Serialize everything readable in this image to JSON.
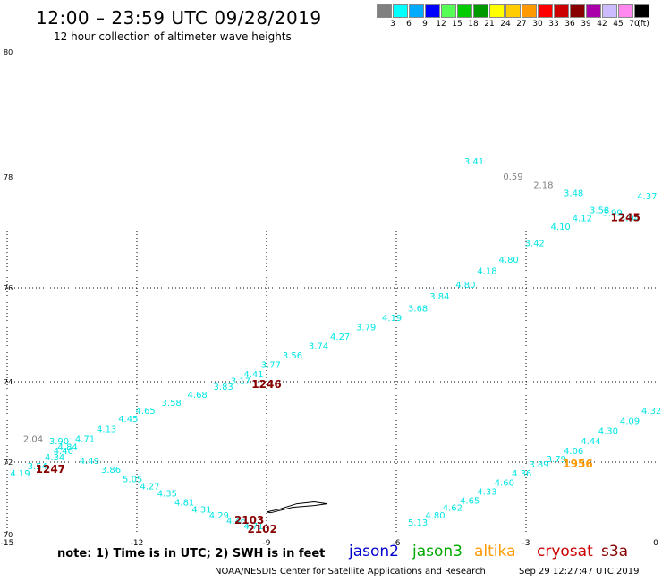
{
  "header": {
    "title": "12:00 – 23:59 UTC 09/28/2019",
    "subtitle": "12 hour collection of altimeter wave heights"
  },
  "legend": {
    "unit": "(ft)",
    "cells": [
      {
        "color": "#808080",
        "label": "3"
      },
      {
        "color": "#00ffff",
        "label": "6"
      },
      {
        "color": "#00aaff",
        "label": "9"
      },
      {
        "color": "#0000ff",
        "label": "12"
      },
      {
        "color": "#55ff55",
        "label": "15"
      },
      {
        "color": "#00cc00",
        "label": "18"
      },
      {
        "color": "#009900",
        "label": "21"
      },
      {
        "color": "#ffff00",
        "label": "24"
      },
      {
        "color": "#ffcc00",
        "label": "27"
      },
      {
        "color": "#ff9900",
        "label": "30"
      },
      {
        "color": "#ff0000",
        "label": "33"
      },
      {
        "color": "#cc0000",
        "label": "36"
      },
      {
        "color": "#880000",
        "label": "39"
      },
      {
        "color": "#aa00aa",
        "label": "42"
      },
      {
        "color": "#ccbbff",
        "label": "45"
      },
      {
        "color": "#ff88ee",
        "label": "70"
      },
      {
        "color": "#000000",
        "label": ""
      }
    ]
  },
  "chart_data": {
    "type": "scatter",
    "xlim": [
      -15,
      0
    ],
    "ylim": [
      70,
      80
    ],
    "grid": true,
    "x_ticks": [
      {
        "value": -15,
        "label": "-15"
      },
      {
        "value": -12,
        "label": "-12"
      },
      {
        "value": -9,
        "label": "-9"
      },
      {
        "value": -6,
        "label": "-6"
      },
      {
        "value": -3,
        "label": "-3"
      },
      {
        "value": 0,
        "label": "0"
      }
    ],
    "y_ticks": [
      {
        "value": 80,
        "label": "80"
      },
      {
        "value": 78,
        "label": "78"
      },
      {
        "value": 76,
        "label": "76"
      },
      {
        "value": 74,
        "label": "74"
      },
      {
        "value": 72,
        "label": "72"
      },
      {
        "value": 70,
        "label": "70"
      }
    ],
    "observations": [
      {
        "lon": -14.7,
        "lat": 71.6,
        "value": "4.19",
        "color": "#00e5e5"
      },
      {
        "lon": -14.3,
        "lat": 71.8,
        "value": "3.54",
        "color": "#00e5e5"
      },
      {
        "lon": -13.9,
        "lat": 72.05,
        "value": "4.34",
        "color": "#00e5e5"
      },
      {
        "lon": -13.7,
        "lat": 72.2,
        "value": "4.40",
        "color": "#00e5e5"
      },
      {
        "lon": -13.6,
        "lat": 72.3,
        "value": "4.84",
        "color": "#00e5e5"
      },
      {
        "lon": -13.8,
        "lat": 72.45,
        "value": "3.90",
        "color": "#00e5e5"
      },
      {
        "lon": -13.2,
        "lat": 72.5,
        "value": "4.71",
        "color": "#00e5e5"
      },
      {
        "lon": -12.7,
        "lat": 72.75,
        "value": "4.13",
        "color": "#00e5e5"
      },
      {
        "lon": -12.2,
        "lat": 73.0,
        "value": "4.45",
        "color": "#00e5e5"
      },
      {
        "lon": -11.8,
        "lat": 73.2,
        "value": "4.65",
        "color": "#00e5e5"
      },
      {
        "lon": -11.2,
        "lat": 73.4,
        "value": "3.58",
        "color": "#00e5e5"
      },
      {
        "lon": -10.6,
        "lat": 73.6,
        "value": "4.68",
        "color": "#00e5e5"
      },
      {
        "lon": -10.0,
        "lat": 73.8,
        "value": "3.83",
        "color": "#00e5e5"
      },
      {
        "lon": -9.6,
        "lat": 73.95,
        "value": "3.17",
        "color": "#00e5e5"
      },
      {
        "lon": -9.3,
        "lat": 74.1,
        "value": "4.41",
        "color": "#00e5e5"
      },
      {
        "lon": -8.9,
        "lat": 74.3,
        "value": "3.77",
        "color": "#00e5e5"
      },
      {
        "lon": -8.4,
        "lat": 74.5,
        "value": "3.56",
        "color": "#00e5e5"
      },
      {
        "lon": -7.8,
        "lat": 74.7,
        "value": "3.74",
        "color": "#00e5e5"
      },
      {
        "lon": -7.3,
        "lat": 74.9,
        "value": "4.27",
        "color": "#00e5e5"
      },
      {
        "lon": -6.7,
        "lat": 75.1,
        "value": "3.79",
        "color": "#00e5e5"
      },
      {
        "lon": -6.1,
        "lat": 75.3,
        "value": "4.19",
        "color": "#00e5e5"
      },
      {
        "lon": -5.5,
        "lat": 75.5,
        "value": "3.68",
        "color": "#00e5e5"
      },
      {
        "lon": -5.0,
        "lat": 75.75,
        "value": "3.84",
        "color": "#00e5e5"
      },
      {
        "lon": -4.4,
        "lat": 76.0,
        "value": "4.80",
        "color": "#00e5e5"
      },
      {
        "lon": -3.9,
        "lat": 76.25,
        "value": "4.18",
        "color": "#00e5e5"
      },
      {
        "lon": -3.4,
        "lat": 76.45,
        "value": "4.80",
        "color": "#00e5e5"
      },
      {
        "lon": -2.8,
        "lat": 76.75,
        "value": "3.42",
        "color": "#00e5e5"
      },
      {
        "lon": -2.2,
        "lat": 77.05,
        "value": "4.10",
        "color": "#00e5e5"
      },
      {
        "lon": -1.7,
        "lat": 77.2,
        "value": "4.12",
        "color": "#00e5e5"
      },
      {
        "lon": -1.3,
        "lat": 77.35,
        "value": "3.58",
        "color": "#00e5e5"
      },
      {
        "lon": -1.0,
        "lat": 77.3,
        "value": "3.99",
        "color": "#00e5e5"
      },
      {
        "lon": -0.6,
        "lat": 77.2,
        "value": "3.94",
        "color": "#00e5e5"
      },
      {
        "lon": -0.2,
        "lat": 77.6,
        "value": "4.37",
        "color": "#00e5e5"
      },
      {
        "lon": -1.9,
        "lat": 77.65,
        "value": "3.48",
        "color": "#00e5e5"
      },
      {
        "lon": -4.2,
        "lat": 78.2,
        "value": "3.41",
        "color": "#00e5e5"
      },
      {
        "lon": -3.3,
        "lat": 77.95,
        "value": "0.59",
        "color": "#808080"
      },
      {
        "lon": -2.6,
        "lat": 77.8,
        "value": "2.18",
        "color": "#808080"
      },
      {
        "lon": -14.4,
        "lat": 72.5,
        "value": "2.04",
        "color": "#808080"
      },
      {
        "lon": -13.1,
        "lat": 71.95,
        "value": "4.49",
        "color": "#00e5e5"
      },
      {
        "lon": -12.6,
        "lat": 71.7,
        "value": "3.86",
        "color": "#00e5e5"
      },
      {
        "lon": -12.1,
        "lat": 71.45,
        "value": "5.05",
        "color": "#00e5e5"
      },
      {
        "lon": -11.7,
        "lat": 71.25,
        "value": "4.27",
        "color": "#00e5e5"
      },
      {
        "lon": -11.3,
        "lat": 71.05,
        "value": "4.35",
        "color": "#00e5e5"
      },
      {
        "lon": -10.9,
        "lat": 70.8,
        "value": "4.81",
        "color": "#00e5e5"
      },
      {
        "lon": -10.5,
        "lat": 70.6,
        "value": "4.31",
        "color": "#00e5e5"
      },
      {
        "lon": -10.1,
        "lat": 70.45,
        "value": "4.29",
        "color": "#00e5e5"
      },
      {
        "lon": -9.7,
        "lat": 70.3,
        "value": "4.46",
        "color": "#00e5e5"
      },
      {
        "lon": -9.3,
        "lat": 70.15,
        "value": "4.71",
        "color": "#00e5e5"
      },
      {
        "lon": -5.5,
        "lat": 70.25,
        "value": "5.13",
        "color": "#00e5e5"
      },
      {
        "lon": -5.1,
        "lat": 70.45,
        "value": "4.80",
        "color": "#00e5e5"
      },
      {
        "lon": -4.7,
        "lat": 70.65,
        "value": "4.62",
        "color": "#00e5e5"
      },
      {
        "lon": -4.3,
        "lat": 70.85,
        "value": "4.65",
        "color": "#00e5e5"
      },
      {
        "lon": -3.9,
        "lat": 71.1,
        "value": "4.33",
        "color": "#00e5e5"
      },
      {
        "lon": -3.5,
        "lat": 71.35,
        "value": "4.60",
        "color": "#00e5e5"
      },
      {
        "lon": -3.1,
        "lat": 71.6,
        "value": "4.36",
        "color": "#00e5e5"
      },
      {
        "lon": -2.7,
        "lat": 71.85,
        "value": "3.89",
        "color": "#00e5e5"
      },
      {
        "lon": -2.3,
        "lat": 72.0,
        "value": "3.79",
        "color": "#00e5e5"
      },
      {
        "lon": -1.9,
        "lat": 72.2,
        "value": "4.06",
        "color": "#00e5e5"
      },
      {
        "lon": -1.5,
        "lat": 72.45,
        "value": "4.44",
        "color": "#00e5e5"
      },
      {
        "lon": -1.1,
        "lat": 72.7,
        "value": "4.30",
        "color": "#00e5e5"
      },
      {
        "lon": -0.6,
        "lat": 72.95,
        "value": "4.09",
        "color": "#00e5e5"
      },
      {
        "lon": -0.1,
        "lat": 73.2,
        "value": "4.32",
        "color": "#00e5e5"
      }
    ],
    "pass_times": [
      {
        "lon": -14.0,
        "lat": 71.7,
        "label": "1247",
        "color": "#880000"
      },
      {
        "lon": -9.0,
        "lat": 73.85,
        "label": "1246",
        "color": "#880000"
      },
      {
        "lon": -0.7,
        "lat": 77.2,
        "label": "1245",
        "color": "#880000"
      },
      {
        "lon": -9.4,
        "lat": 70.3,
        "label": "2103",
        "color": "#880000"
      },
      {
        "lon": -9.1,
        "lat": 70.05,
        "label": "2102",
        "color": "#880000"
      },
      {
        "lon": -1.8,
        "lat": 71.85,
        "label": "1956",
        "color": "#ff9900"
      }
    ],
    "landmass": [
      [
        -8.9,
        70.6
      ],
      [
        -8.4,
        70.75
      ],
      [
        -7.9,
        70.8
      ],
      [
        -7.6,
        70.85
      ],
      [
        -7.9,
        70.9
      ],
      [
        -8.3,
        70.85
      ],
      [
        -8.7,
        70.7
      ],
      [
        -9.0,
        70.62
      ],
      [
        -8.9,
        70.6
      ]
    ]
  },
  "footer": {
    "note": "note: 1) Time is in UTC; 2) SWH is in feet",
    "satellites": [
      {
        "name": "jason2",
        "color": "#0000cc"
      },
      {
        "name": "jason3",
        "color": "#00aa00"
      },
      {
        "name": "altika",
        "color": "#ff9900"
      },
      {
        "name": "cryosat",
        "color": "#cc0000"
      },
      {
        "name": "s3a",
        "color": "#880000"
      }
    ],
    "credit": "NOAA/NESDIS Center for Satellite Applications and Research",
    "timestamp": "Sep 29 12:27:47 UTC 2019"
  }
}
